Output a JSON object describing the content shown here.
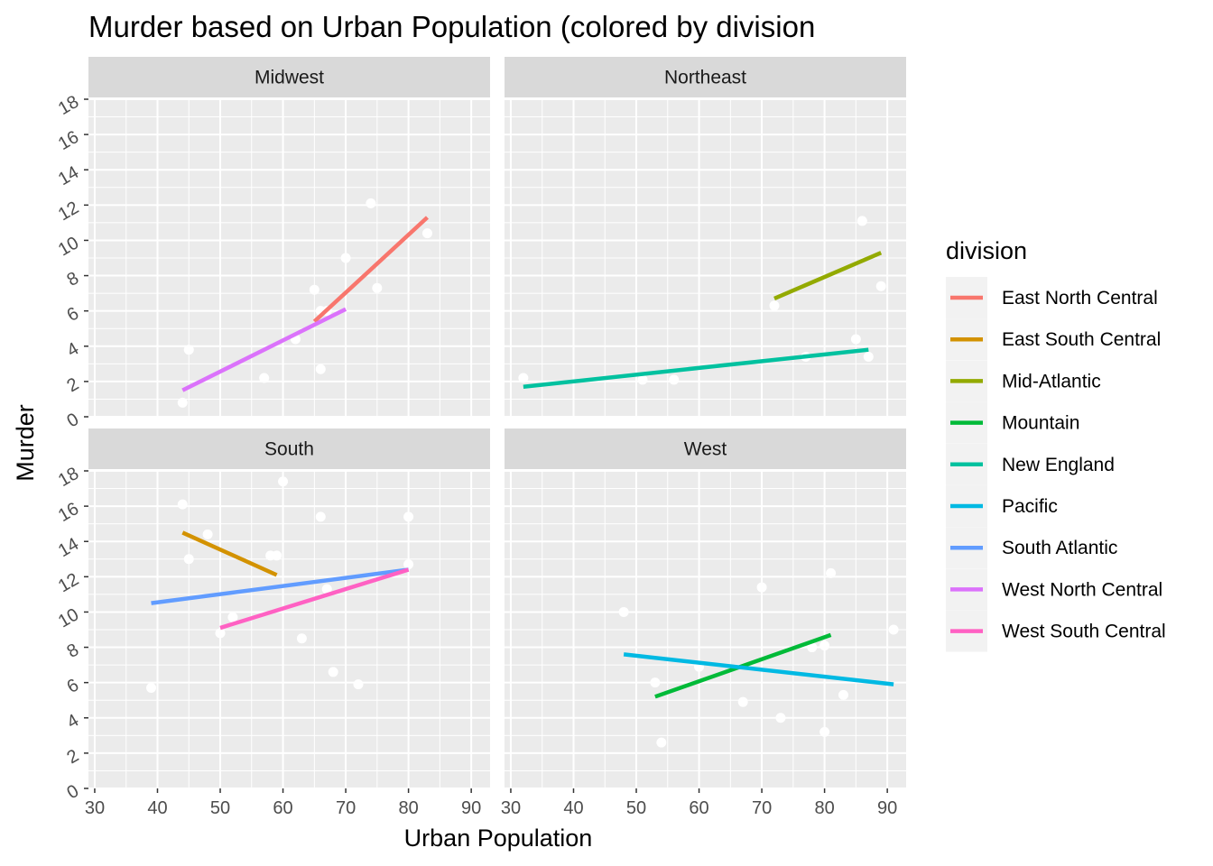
{
  "chart_data": {
    "type": "scatter",
    "title": "Murder based on Urban Population (colored by division",
    "xlabel": "Urban Population",
    "ylabel": "Murder",
    "xlim": [
      29,
      93
    ],
    "ylim": [
      0,
      18
    ],
    "x_ticks": [
      30,
      40,
      50,
      60,
      70,
      80,
      90
    ],
    "y_ticks": [
      0,
      2,
      4,
      6,
      8,
      10,
      12,
      14,
      16,
      18
    ],
    "grid": true,
    "legend": {
      "title": "division",
      "position": "right",
      "entries": [
        {
          "label": "East North Central",
          "color": "#F8766D"
        },
        {
          "label": "East South Central",
          "color": "#D39200"
        },
        {
          "label": "Mid-Atlantic",
          "color": "#93AA00"
        },
        {
          "label": "Mountain",
          "color": "#00BA38"
        },
        {
          "label": "New England",
          "color": "#00C19F"
        },
        {
          "label": "Pacific",
          "color": "#00B9E3"
        },
        {
          "label": "South Atlantic",
          "color": "#619CFF"
        },
        {
          "label": "West North Central",
          "color": "#DB72FB"
        },
        {
          "label": "West South Central",
          "color": "#FF61C3"
        }
      ]
    },
    "panels": [
      {
        "name": "Midwest",
        "points": [
          {
            "x": 83,
            "y": 10.4
          },
          {
            "x": 65,
            "y": 7.2
          },
          {
            "x": 57,
            "y": 2.2
          },
          {
            "x": 66,
            "y": 6.0
          },
          {
            "x": 74,
            "y": 12.1
          },
          {
            "x": 66,
            "y": 2.7
          },
          {
            "x": 70,
            "y": 9.0
          },
          {
            "x": 75,
            "y": 7.3
          },
          {
            "x": 62,
            "y": 4.4
          },
          {
            "x": 44,
            "y": 0.8
          },
          {
            "x": 45,
            "y": 3.8
          },
          {
            "x": 67,
            "y": 6.0
          }
        ],
        "lines": [
          {
            "division": "East North Central",
            "x": [
              65,
              83
            ],
            "y": [
              5.4,
              11.3
            ]
          },
          {
            "division": "West North Central",
            "x": [
              44,
              70
            ],
            "y": [
              1.5,
              6.1
            ]
          }
        ]
      },
      {
        "name": "Northeast",
        "points": [
          {
            "x": 77,
            "y": 3.4
          },
          {
            "x": 51,
            "y": 2.1
          },
          {
            "x": 85,
            "y": 4.4
          },
          {
            "x": 56,
            "y": 2.1
          },
          {
            "x": 87,
            "y": 3.4
          },
          {
            "x": 32,
            "y": 2.2
          },
          {
            "x": 89,
            "y": 7.4
          },
          {
            "x": 86,
            "y": 11.1
          },
          {
            "x": 72,
            "y": 6.3
          }
        ],
        "lines": [
          {
            "division": "Mid-Atlantic",
            "x": [
              72,
              89
            ],
            "y": [
              6.7,
              9.3
            ]
          },
          {
            "division": "New England",
            "x": [
              32,
              87
            ],
            "y": [
              1.7,
              3.8
            ]
          }
        ]
      },
      {
        "name": "South",
        "points": [
          {
            "x": 58,
            "y": 13.2
          },
          {
            "x": 59,
            "y": 13.2
          },
          {
            "x": 66,
            "y": 15.4
          },
          {
            "x": 60,
            "y": 17.4
          },
          {
            "x": 80,
            "y": 15.4
          },
          {
            "x": 44,
            "y": 16.1
          },
          {
            "x": 45,
            "y": 13.0
          },
          {
            "x": 48,
            "y": 14.4
          },
          {
            "x": 80,
            "y": 12.7
          },
          {
            "x": 67,
            "y": 11.3
          },
          {
            "x": 52,
            "y": 9.7
          },
          {
            "x": 50,
            "y": 8.8
          },
          {
            "x": 63,
            "y": 8.5
          },
          {
            "x": 68,
            "y": 6.6
          },
          {
            "x": 72,
            "y": 5.9
          },
          {
            "x": 39,
            "y": 5.7
          }
        ],
        "lines": [
          {
            "division": "East South Central",
            "x": [
              44,
              59
            ],
            "y": [
              14.5,
              12.1
            ]
          },
          {
            "division": "South Atlantic",
            "x": [
              39,
              80
            ],
            "y": [
              10.5,
              12.4
            ]
          },
          {
            "division": "West South Central",
            "x": [
              50,
              80
            ],
            "y": [
              9.1,
              12.4
            ]
          }
        ]
      },
      {
        "name": "West",
        "points": [
          {
            "x": 48,
            "y": 10.0
          },
          {
            "x": 53,
            "y": 6.0
          },
          {
            "x": 54,
            "y": 2.6
          },
          {
            "x": 60,
            "y": 6.9
          },
          {
            "x": 67,
            "y": 4.9
          },
          {
            "x": 70,
            "y": 11.4
          },
          {
            "x": 73,
            "y": 4.0
          },
          {
            "x": 78,
            "y": 8.0
          },
          {
            "x": 80,
            "y": 3.2
          },
          {
            "x": 80,
            "y": 8.1
          },
          {
            "x": 81,
            "y": 12.2
          },
          {
            "x": 83,
            "y": 5.3
          },
          {
            "x": 91,
            "y": 9.0
          }
        ],
        "lines": [
          {
            "division": "Mountain",
            "x": [
              53,
              81
            ],
            "y": [
              5.2,
              8.7
            ]
          },
          {
            "division": "Pacific",
            "x": [
              48,
              91
            ],
            "y": [
              7.6,
              5.9
            ]
          }
        ]
      }
    ]
  }
}
